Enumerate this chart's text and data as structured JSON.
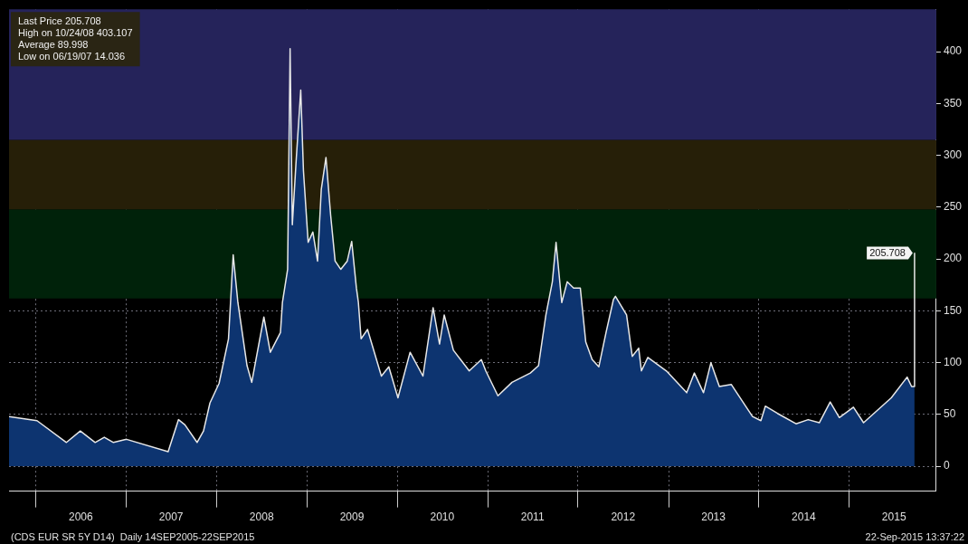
{
  "chart_data": {
    "type": "area",
    "x": [
      "2005-09-14",
      "2006-01-05",
      "2006-05-04",
      "2006-06-29",
      "2006-08-28",
      "2006-10-04",
      "2006-11-10",
      "2007-01-02",
      "2007-06-19",
      "2007-07-31",
      "2007-08-26",
      "2007-10-14",
      "2007-11-09",
      "2007-12-05",
      "2008-01-11",
      "2008-02-18",
      "2008-03-08",
      "2008-03-27",
      "2008-05-03",
      "2008-05-22",
      "2008-07-10",
      "2008-08-05",
      "2008-09-15",
      "2008-09-23",
      "2008-10-14",
      "2008-10-24",
      "2008-11-02",
      "2008-11-17",
      "2008-12-06",
      "2008-12-17",
      "2009-01-05",
      "2009-01-24",
      "2009-02-12",
      "2009-02-27",
      "2009-03-18",
      "2009-04-06",
      "2009-04-24",
      "2009-05-17",
      "2009-06-12",
      "2009-06-30",
      "2009-07-19",
      "2009-07-27",
      "2009-08-07",
      "2009-09-02",
      "2009-10-28",
      "2009-11-27",
      "2010-01-03",
      "2010-02-21",
      "2010-04-14",
      "2010-05-25",
      "2010-06-20",
      "2010-07-09",
      "2010-08-15",
      "2010-10-18",
      "2010-12-06",
      "2010-12-24",
      "2011-02-11",
      "2011-04-09",
      "2011-06-22",
      "2011-07-25",
      "2011-08-24",
      "2011-09-19",
      "2011-10-04",
      "2011-10-27",
      "2011-11-18",
      "2011-12-14",
      "2012-01-10",
      "2012-02-01",
      "2012-02-27",
      "2012-03-25",
      "2012-04-23",
      "2012-05-23",
      "2012-05-31",
      "2012-07-15",
      "2012-08-07",
      "2012-09-02",
      "2012-09-13",
      "2012-10-09",
      "2012-12-23",
      "2013-03-15",
      "2013-04-15",
      "2013-05-22",
      "2013-06-21",
      "2013-07-25",
      "2013-09-11",
      "2013-12-06",
      "2014-01-09",
      "2014-01-27",
      "2014-03-17",
      "2014-05-31",
      "2014-07-19",
      "2014-09-02",
      "2014-10-16",
      "2014-11-22",
      "2015-01-18",
      "2015-02-28",
      "2015-04-25",
      "2015-06-20",
      "2015-08-23",
      "2015-09-10",
      "2015-09-21",
      "2015-09-22"
    ],
    "series": [
      {
        "color": "#e8e8e8",
        "values": [
          48,
          44,
          23,
          34,
          23,
          28,
          23,
          26,
          14,
          45,
          40,
          23,
          34,
          61,
          80,
          123,
          204,
          158,
          97,
          81,
          144,
          110,
          129,
          158,
          190,
          403,
          233,
          293,
          363,
          285,
          216,
          226,
          198,
          267,
          298,
          242,
          198,
          190,
          198,
          217,
          172,
          158,
          123,
          132,
          87,
          96,
          66,
          110,
          87,
          153,
          118,
          146,
          112,
          92,
          103,
          92,
          68,
          81,
          90,
          97,
          146,
          178,
          216,
          158,
          178,
          172,
          172,
          120,
          103,
          96,
          129,
          161,
          164,
          146,
          106,
          114,
          92,
          105,
          92,
          71,
          90,
          71,
          100,
          77,
          79,
          48,
          44,
          58,
          51,
          41,
          45,
          42,
          62,
          47,
          57,
          42,
          54,
          66,
          86,
          77,
          77,
          206
        ]
      }
    ],
    "xlim": [
      "2005-09-14",
      "2015-12-19"
    ],
    "xticks": [
      {
        "value": "2006-01-01",
        "label": null
      },
      {
        "value": "2006-07-01",
        "label": "2006"
      },
      {
        "value": "2007-01-01",
        "label": null
      },
      {
        "value": "2007-07-01",
        "label": "2007"
      },
      {
        "value": "2008-01-01",
        "label": null
      },
      {
        "value": "2008-07-01",
        "label": "2008"
      },
      {
        "value": "2009-01-01",
        "label": null
      },
      {
        "value": "2009-07-01",
        "label": "2009"
      },
      {
        "value": "2010-01-01",
        "label": null
      },
      {
        "value": "2010-07-01",
        "label": "2010"
      },
      {
        "value": "2011-01-01",
        "label": null
      },
      {
        "value": "2011-07-01",
        "label": "2011"
      },
      {
        "value": "2012-01-01",
        "label": null
      },
      {
        "value": "2012-07-01",
        "label": "2012"
      },
      {
        "value": "2013-01-01",
        "label": null
      },
      {
        "value": "2013-07-01",
        "label": "2013"
      },
      {
        "value": "2014-01-01",
        "label": null
      },
      {
        "value": "2014-07-01",
        "label": "2014"
      },
      {
        "value": "2015-01-01",
        "label": null
      },
      {
        "value": "2015-07-01",
        "label": "2015"
      }
    ],
    "ylim": [
      -24,
      441
    ],
    "yticks": [
      0,
      50,
      100,
      150,
      200,
      250,
      300,
      350,
      400
    ],
    "bands": [
      {
        "axis": "y",
        "from": 162,
        "to": 248,
        "color": "#00220a"
      },
      {
        "axis": "y",
        "from": 248,
        "to": 315,
        "color": "#261f08"
      },
      {
        "axis": "y",
        "from": 315,
        "to": 441,
        "color": "#25235a"
      }
    ],
    "grid": true,
    "marker": "none",
    "annotations": [
      "Last Price 205.708",
      "High on 10/24/08 403.107",
      "Average 89.998",
      "Low on 06/19/07 14.036",
      {
        "text": "205.708",
        "x": "2015-09-22",
        "y": 205.708
      },
      "(CDS EUR SR 5Y D14)  Daily 14SEP2005-22SEP2015",
      "22-Sep-2015 13:37:22"
    ]
  }
}
